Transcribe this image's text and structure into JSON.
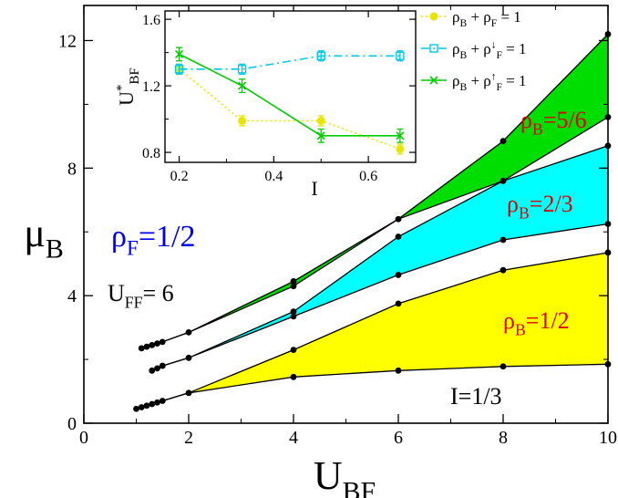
{
  "chart_data": [
    {
      "type": "area",
      "xlabel": "U",
      "xlabel_sub": "BF",
      "ylabel": "μ",
      "ylabel_sub": "B",
      "xlim": [
        0,
        10
      ],
      "ylim": [
        0,
        13.1
      ],
      "xticks": [
        0,
        2,
        4,
        6,
        8,
        10
      ],
      "yticks": [
        0,
        4,
        8,
        12
      ],
      "grid": false,
      "bands": [
        {
          "label_main": "ρ",
          "label_sub": "B",
          "label_rest": "=1/2",
          "color": "#ffff00",
          "label_color": "#e00000",
          "x": [
            1.0,
            1.1,
            1.2,
            1.3,
            1.4,
            1.5,
            2,
            4,
            6,
            8,
            10
          ],
          "lower": [
            0.45,
            0.5,
            0.55,
            0.6,
            0.65,
            0.7,
            0.95,
            1.45,
            1.65,
            1.78,
            1.85
          ],
          "upper": [
            0.45,
            0.5,
            0.55,
            0.6,
            0.65,
            0.7,
            0.95,
            2.3,
            3.75,
            4.8,
            5.35
          ]
        },
        {
          "label_main": "ρ",
          "label_sub": "B",
          "label_rest": "=2/3",
          "color": "#00ffff",
          "label_color": "#e00000",
          "x": [
            1.3,
            1.4,
            1.5,
            2,
            4,
            6,
            8,
            10
          ],
          "lower": [
            1.65,
            1.72,
            1.8,
            2.05,
            3.35,
            4.65,
            5.75,
            6.25
          ],
          "upper": [
            1.65,
            1.72,
            1.8,
            2.05,
            3.5,
            5.85,
            7.6,
            8.7
          ]
        },
        {
          "label_main": "ρ",
          "label_sub": "B",
          "label_rest": "=5/6",
          "color": "#00dd00",
          "label_color": "#e00000",
          "x": [
            1.1,
            1.2,
            1.3,
            1.4,
            1.5,
            2,
            4,
            6,
            8,
            10
          ],
          "lower": [
            2.35,
            2.4,
            2.45,
            2.5,
            2.55,
            2.85,
            4.3,
            6.4,
            7.6,
            9.6
          ],
          "upper": [
            2.35,
            2.4,
            2.45,
            2.5,
            2.55,
            2.85,
            4.45,
            6.4,
            8.85,
            12.2
          ]
        }
      ],
      "annotations": {
        "rho_f": {
          "main": "ρ",
          "sub": "F",
          "rest": "=1/2",
          "color": "#0000ee"
        },
        "uff": {
          "main": "U",
          "sub": "FF",
          "rest": "= 6",
          "color": "#000000"
        },
        "ratio": {
          "text": "I=1/3",
          "color": "#000000"
        }
      }
    },
    {
      "type": "line",
      "inset": true,
      "xlabel": "I",
      "ylabel": "U",
      "ylabel_sup": "*",
      "ylabel_sub": "BF",
      "xlim": [
        0.17,
        0.7
      ],
      "ylim": [
        0.74,
        1.65
      ],
      "xticks": [
        0.2,
        0.4,
        0.6
      ],
      "yticks": [
        0.8,
        1.2,
        1.6
      ],
      "legend_placement": "outside-right",
      "series": [
        {
          "name_parts": [
            "ρ",
            "B",
            " + ρ",
            "F",
            "",
            "= 1"
          ],
          "color": "#e6e600",
          "marker": "circle",
          "dash": "2,3",
          "x": [
            0.2,
            0.333,
            0.5,
            0.667
          ],
          "y": [
            1.3,
            0.99,
            0.99,
            0.82
          ],
          "err": [
            0.03,
            0.03,
            0.03,
            0.03
          ]
        },
        {
          "name_parts": [
            "ρ",
            "B",
            " + ρ",
            "F",
            "↓",
            "= 1"
          ],
          "color": "#00c8e6",
          "marker": "square",
          "dash": "9,4,2,4",
          "x": [
            0.2,
            0.333,
            0.5,
            0.667
          ],
          "y": [
            1.3,
            1.3,
            1.38,
            1.38
          ],
          "err": [
            0.03,
            0.03,
            0.03,
            0.03
          ]
        },
        {
          "name_parts": [
            "ρ",
            "B",
            " + ρ",
            "F",
            "↑",
            "= 1"
          ],
          "color": "#00cc00",
          "marker": "cross",
          "dash": "",
          "x": [
            0.2,
            0.333,
            0.5,
            0.667
          ],
          "y": [
            1.39,
            1.2,
            0.9,
            0.9
          ],
          "err": [
            0.04,
            0.04,
            0.04,
            0.04
          ]
        }
      ]
    }
  ]
}
